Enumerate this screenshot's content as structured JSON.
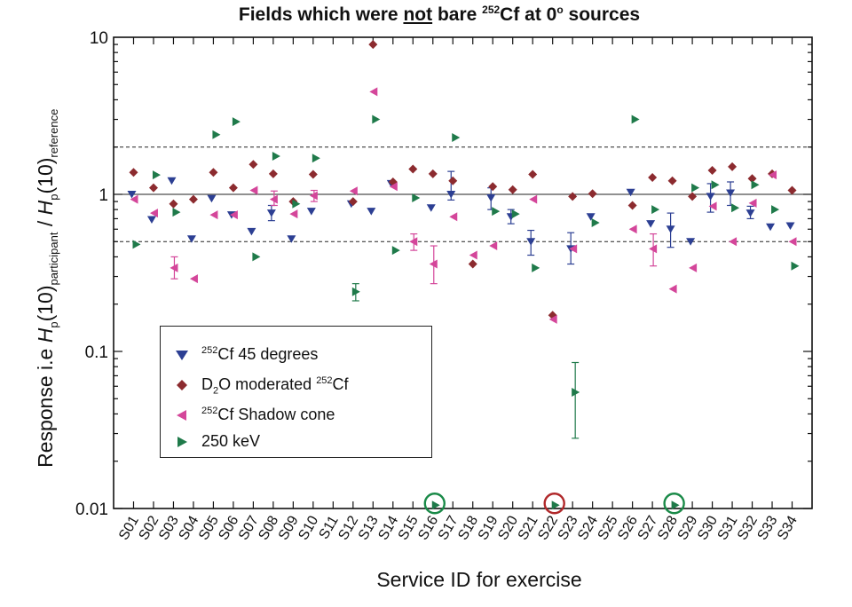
{
  "title": {
    "prefix": "Fields which were ",
    "underlined": "not",
    "middle": " bare ",
    "sup": "252",
    "suffix_a": "Cf at 0",
    "deg": "o",
    "suffix_b": " sources"
  },
  "axes": {
    "ylabel_a": "Response i.e ",
    "ylabel_b": "H",
    "ylabel_c": "p",
    "ylabel_d": "(10)",
    "ylabel_e": "participant",
    "ylabel_f": " / ",
    "ylabel_g": "H",
    "ylabel_h": "p",
    "ylabel_i": "(10)",
    "ylabel_j": "reference",
    "xlabel": "Service ID for exercise"
  },
  "legend": {
    "s1_sup": "252",
    "s1_text": "Cf 45 degrees",
    "s2_a": "D",
    "s2_sub": "2",
    "s2_b": "O moderated ",
    "s2_sup": "252",
    "s2_c": "Cf",
    "s3_sup": "252",
    "s3_text": "Cf Shadow cone",
    "s4_text": "250 keV"
  },
  "colors": {
    "cf45": "#2c3f93",
    "d2o": "#8c2b2f",
    "shadow": "#d4469a",
    "kev250": "#1f7a4a",
    "circle_green": "#1a8a48",
    "circle_red": "#b0282a"
  },
  "chart_data": {
    "type": "scatter",
    "title": "Fields which were not bare 252Cf at 0° sources",
    "xlabel": "Service ID for exercise",
    "ylabel": "Response i.e Hp(10)participant / Hp(10)reference",
    "yscale": "log",
    "ylim": [
      0.01,
      10
    ],
    "ytick_labels": [
      "0.01",
      "0.1",
      "1",
      "10"
    ],
    "yticks": [
      0.01,
      0.1,
      1,
      10
    ],
    "reference_lines": [
      {
        "y": 1,
        "style": "solid"
      },
      {
        "y": 2,
        "style": "dashed"
      },
      {
        "y": 0.5,
        "style": "dashed"
      }
    ],
    "grid": false,
    "legend_position": "lower-left",
    "categories": [
      "S01",
      "S02",
      "S03",
      "S04",
      "S05",
      "S06",
      "S07",
      "S08",
      "S09",
      "S10",
      "S11",
      "S12",
      "S13",
      "S14",
      "S15",
      "S16",
      "S17",
      "S18",
      "S19",
      "S20",
      "S21",
      "S22",
      "S23",
      "S24",
      "S25",
      "S26",
      "S27",
      "S28",
      "S29",
      "S30",
      "S31",
      "S32",
      "S33",
      "S34"
    ],
    "series": [
      {
        "name": "252Cf 45 degrees",
        "marker": "triangle-down",
        "color": "#2c3f93",
        "points": [
          {
            "x": "S01",
            "y": 1.0
          },
          {
            "x": "S02",
            "y": 0.69
          },
          {
            "x": "S03",
            "y": 1.22
          },
          {
            "x": "S04",
            "y": 0.52
          },
          {
            "x": "S05",
            "y": 0.94
          },
          {
            "x": "S06",
            "y": 0.74
          },
          {
            "x": "S07",
            "y": 0.58
          },
          {
            "x": "S08",
            "y": 0.76,
            "err": [
              0.68,
              0.85
            ]
          },
          {
            "x": "S09",
            "y": 0.52
          },
          {
            "x": "S10",
            "y": 0.78
          },
          {
            "x": "S12",
            "y": 0.87
          },
          {
            "x": "S13",
            "y": 0.78
          },
          {
            "x": "S14",
            "y": 1.17
          },
          {
            "x": "S16",
            "y": 0.82
          },
          {
            "x": "S17",
            "y": 1.0,
            "err": [
              0.92,
              1.4
            ]
          },
          {
            "x": "S19",
            "y": 0.95,
            "err": [
              0.8,
              1.1
            ]
          },
          {
            "x": "S20",
            "y": 0.72,
            "err": [
              0.65,
              0.8
            ]
          },
          {
            "x": "S21",
            "y": 0.5,
            "err": [
              0.41,
              0.59
            ]
          },
          {
            "x": "S23",
            "y": 0.45,
            "err": [
              0.36,
              0.57
            ]
          },
          {
            "x": "S24",
            "y": 0.72
          },
          {
            "x": "S26",
            "y": 1.03
          },
          {
            "x": "S27",
            "y": 0.65
          },
          {
            "x": "S28",
            "y": 0.6,
            "err": [
              0.46,
              0.76
            ]
          },
          {
            "x": "S29",
            "y": 0.5
          },
          {
            "x": "S30",
            "y": 0.97,
            "err": [
              0.77,
              1.17
            ]
          },
          {
            "x": "S31",
            "y": 1.02,
            "err": [
              0.85,
              1.2
            ]
          },
          {
            "x": "S32",
            "y": 0.76,
            "err": [
              0.7,
              0.84
            ]
          },
          {
            "x": "S33",
            "y": 0.62
          },
          {
            "x": "S34",
            "y": 0.63
          }
        ]
      },
      {
        "name": "D2O moderated 252Cf",
        "marker": "diamond",
        "color": "#8c2b2f",
        "points": [
          {
            "x": "S01",
            "y": 1.38
          },
          {
            "x": "S02",
            "y": 1.1
          },
          {
            "x": "S03",
            "y": 0.87
          },
          {
            "x": "S04",
            "y": 0.93
          },
          {
            "x": "S05",
            "y": 1.38
          },
          {
            "x": "S06",
            "y": 1.1
          },
          {
            "x": "S07",
            "y": 1.55
          },
          {
            "x": "S08",
            "y": 1.35
          },
          {
            "x": "S09",
            "y": 0.9
          },
          {
            "x": "S10",
            "y": 1.34
          },
          {
            "x": "S12",
            "y": 0.9
          },
          {
            "x": "S13",
            "y": 9.0
          },
          {
            "x": "S14",
            "y": 1.2
          },
          {
            "x": "S15",
            "y": 1.45
          },
          {
            "x": "S16",
            "y": 1.35
          },
          {
            "x": "S17",
            "y": 1.22
          },
          {
            "x": "S18",
            "y": 0.36
          },
          {
            "x": "S19",
            "y": 1.12
          },
          {
            "x": "S20",
            "y": 1.07
          },
          {
            "x": "S21",
            "y": 1.34
          },
          {
            "x": "S22",
            "y": 0.17
          },
          {
            "x": "S23",
            "y": 0.97
          },
          {
            "x": "S24",
            "y": 1.01
          },
          {
            "x": "S26",
            "y": 0.85
          },
          {
            "x": "S27",
            "y": 1.28
          },
          {
            "x": "S28",
            "y": 1.22
          },
          {
            "x": "S29",
            "y": 0.97
          },
          {
            "x": "S30",
            "y": 1.42
          },
          {
            "x": "S31",
            "y": 1.5
          },
          {
            "x": "S32",
            "y": 1.26
          },
          {
            "x": "S33",
            "y": 1.35
          },
          {
            "x": "S34",
            "y": 1.06
          }
        ]
      },
      {
        "name": "252Cf Shadow cone",
        "marker": "triangle-left",
        "color": "#d4469a",
        "points": [
          {
            "x": "S01",
            "y": 0.93
          },
          {
            "x": "S02",
            "y": 0.76
          },
          {
            "x": "S03",
            "y": 0.34,
            "err": [
              0.29,
              0.4
            ]
          },
          {
            "x": "S04",
            "y": 0.29
          },
          {
            "x": "S05",
            "y": 0.74
          },
          {
            "x": "S06",
            "y": 0.74
          },
          {
            "x": "S07",
            "y": 1.06
          },
          {
            "x": "S08",
            "y": 0.93,
            "err": [
              0.85,
              1.05
            ]
          },
          {
            "x": "S09",
            "y": 0.75
          },
          {
            "x": "S10",
            "y": 0.98,
            "err": [
              0.9,
              1.06
            ]
          },
          {
            "x": "S12",
            "y": 1.05
          },
          {
            "x": "S13",
            "y": 4.5
          },
          {
            "x": "S14",
            "y": 1.12
          },
          {
            "x": "S15",
            "y": 0.5,
            "err": [
              0.44,
              0.56
            ]
          },
          {
            "x": "S16",
            "y": 0.36,
            "err": [
              0.27,
              0.47
            ]
          },
          {
            "x": "S17",
            "y": 0.72
          },
          {
            "x": "S18",
            "y": 0.41
          },
          {
            "x": "S19",
            "y": 0.47
          },
          {
            "x": "S21",
            "y": 0.93
          },
          {
            "x": "S22",
            "y": 0.16
          },
          {
            "x": "S23",
            "y": 0.45
          },
          {
            "x": "S26",
            "y": 0.6
          },
          {
            "x": "S27",
            "y": 0.45,
            "err": [
              0.35,
              0.56
            ]
          },
          {
            "x": "S28",
            "y": 0.25
          },
          {
            "x": "S29",
            "y": 0.34
          },
          {
            "x": "S30",
            "y": 0.84
          },
          {
            "x": "S31",
            "y": 0.5
          },
          {
            "x": "S32",
            "y": 0.88
          },
          {
            "x": "S33",
            "y": 1.33
          },
          {
            "x": "S34",
            "y": 0.5
          }
        ]
      },
      {
        "name": "250 keV",
        "marker": "triangle-right",
        "color": "#1f7a4a",
        "points": [
          {
            "x": "S01",
            "y": 0.48
          },
          {
            "x": "S02",
            "y": 1.33
          },
          {
            "x": "S03",
            "y": 0.77
          },
          {
            "x": "S05",
            "y": 2.4
          },
          {
            "x": "S06",
            "y": 2.9
          },
          {
            "x": "S07",
            "y": 0.4
          },
          {
            "x": "S08",
            "y": 1.75
          },
          {
            "x": "S09",
            "y": 0.87
          },
          {
            "x": "S10",
            "y": 1.7
          },
          {
            "x": "S12",
            "y": 0.24,
            "err": [
              0.21,
              0.27
            ]
          },
          {
            "x": "S13",
            "y": 3.0
          },
          {
            "x": "S14",
            "y": 0.44
          },
          {
            "x": "S15",
            "y": 0.95
          },
          {
            "x": "S16",
            "y": 0.0105
          },
          {
            "x": "S17",
            "y": 2.3
          },
          {
            "x": "S19",
            "y": 0.78
          },
          {
            "x": "S20",
            "y": 0.75
          },
          {
            "x": "S21",
            "y": 0.34
          },
          {
            "x": "S22",
            "y": 0.0105
          },
          {
            "x": "S23",
            "y": 0.055,
            "err": [
              0.028,
              0.085
            ]
          },
          {
            "x": "S24",
            "y": 0.66
          },
          {
            "x": "S26",
            "y": 3.0
          },
          {
            "x": "S27",
            "y": 0.8
          },
          {
            "x": "S28",
            "y": 0.0105
          },
          {
            "x": "S29",
            "y": 1.1
          },
          {
            "x": "S30",
            "y": 1.15
          },
          {
            "x": "S31",
            "y": 0.82
          },
          {
            "x": "S32",
            "y": 1.15
          },
          {
            "x": "S33",
            "y": 0.8
          },
          {
            "x": "S34",
            "y": 0.35
          }
        ]
      }
    ],
    "annotations": [
      {
        "type": "circle",
        "x": "S16",
        "y": 0.0105,
        "color": "green"
      },
      {
        "type": "circle",
        "x": "S22",
        "y": 0.0105,
        "color": "red"
      },
      {
        "type": "circle",
        "x": "S28",
        "y": 0.0105,
        "color": "green"
      }
    ]
  }
}
